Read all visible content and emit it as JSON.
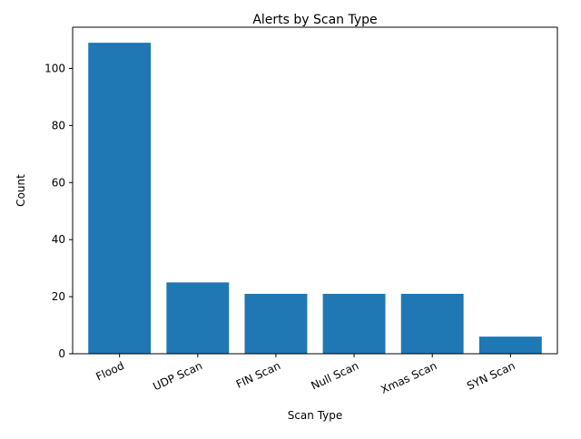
{
  "chart_data": {
    "type": "bar",
    "title": "Alerts by Scan Type",
    "xlabel": "Scan Type",
    "ylabel": "Count",
    "categories": [
      "Flood",
      "UDP Scan",
      "FIN Scan",
      "Null Scan",
      "Xmas Scan",
      "SYN Scan"
    ],
    "values": [
      109,
      25,
      21,
      21,
      21,
      6
    ],
    "ylim": [
      0,
      114.45
    ],
    "yticks": [
      0,
      20,
      40,
      60,
      80,
      100
    ],
    "grid": false,
    "legend": "none",
    "bar_color": "#1f77b4",
    "x_tick_rotation": 25
  }
}
